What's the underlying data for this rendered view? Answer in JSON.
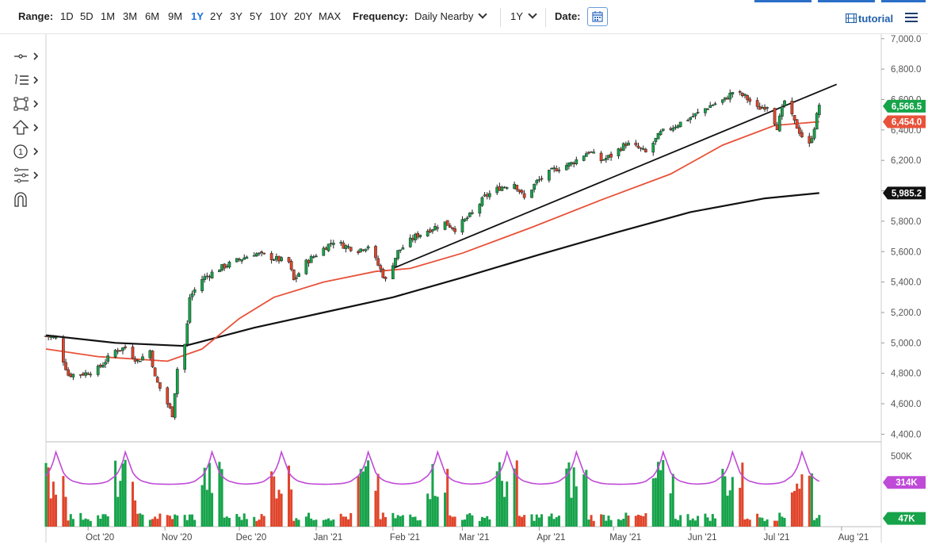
{
  "toolbar": {
    "range_label": "Range:",
    "ranges": [
      "1D",
      "5D",
      "1M",
      "3M",
      "6M",
      "9M",
      "1Y",
      "2Y",
      "3Y",
      "5Y",
      "10Y",
      "20Y",
      "MAX"
    ],
    "active_range": "1Y",
    "frequency_label": "Frequency:",
    "frequency_value": "Daily Nearby",
    "period_value": "1Y",
    "date_label": "Date:",
    "tutorial_label": "tutorial"
  },
  "tools": [
    "crosshair-tool",
    "drawing-list-tool",
    "rectangle-tool",
    "arrow-tool",
    "number-marker-tool",
    "fibonacci-tool",
    "magnet-tool"
  ],
  "colors": {
    "accent": "#1e6fd9",
    "up": "#16a34a",
    "down": "#e0452b",
    "ma50": "#e8523a",
    "ma200": "#111111",
    "volume_avg": "#c04ad8"
  },
  "chart_data": {
    "type": "candlestick",
    "x_ticks": [
      "Oct '20",
      "Nov '20",
      "Dec '20",
      "Jan '21",
      "Feb '21",
      "Mar '21",
      "Apr '21",
      "May '21",
      "Jun '21",
      "Jul '21",
      "Aug '21"
    ],
    "y_ticks": [
      "7,000.0",
      "6,800.0",
      "6,600.0",
      "6,400.0",
      "6,200.0",
      "6,000.0",
      "5,800.0",
      "5,600.0",
      "5,400.0",
      "5,200.0",
      "5,000.0",
      "4,800.0",
      "4,600.0",
      "4,400.0"
    ],
    "ylim": [
      4350,
      7030
    ],
    "price_path": [
      [
        "2020-09-14",
        5045
      ],
      [
        "2020-09-18",
        5030
      ],
      [
        "2020-09-23",
        4790
      ],
      [
        "2020-09-30",
        4800
      ],
      [
        "2020-10-05",
        4830
      ],
      [
        "2020-10-12",
        4950
      ],
      [
        "2020-10-16",
        4970
      ],
      [
        "2020-10-21",
        4880
      ],
      [
        "2020-10-26",
        4950
      ],
      [
        "2020-10-28",
        4770
      ],
      [
        "2020-11-02",
        4600
      ],
      [
        "2020-11-04",
        4530
      ],
      [
        "2020-11-06",
        4830
      ],
      [
        "2020-11-09",
        4990
      ],
      [
        "2020-11-10",
        5120
      ],
      [
        "2020-11-11",
        5300
      ],
      [
        "2020-11-16",
        5420
      ],
      [
        "2020-11-23",
        5490
      ],
      [
        "2020-11-30",
        5540
      ],
      [
        "2020-12-07",
        5590
      ],
      [
        "2020-12-14",
        5560
      ],
      [
        "2020-12-21",
        5530
      ],
      [
        "2020-12-23",
        5410
      ],
      [
        "2020-12-28",
        5530
      ],
      [
        "2021-01-04",
        5620
      ],
      [
        "2021-01-08",
        5670
      ],
      [
        "2021-01-12",
        5640
      ],
      [
        "2021-01-18",
        5610
      ],
      [
        "2021-01-22",
        5640
      ],
      [
        "2021-01-27",
        5480
      ],
      [
        "2021-01-29",
        5410
      ],
      [
        "2021-02-03",
        5600
      ],
      [
        "2021-02-10",
        5700
      ],
      [
        "2021-02-15",
        5740
      ],
      [
        "2021-02-22",
        5790
      ],
      [
        "2021-02-26",
        5750
      ],
      [
        "2021-03-05",
        5850
      ],
      [
        "2021-03-10",
        5960
      ],
      [
        "2021-03-16",
        6020
      ],
      [
        "2021-03-22",
        6050
      ],
      [
        "2021-03-26",
        5950
      ],
      [
        "2021-03-31",
        6060
      ],
      [
        "2021-04-07",
        6140
      ],
      [
        "2021-04-14",
        6180
      ],
      [
        "2021-04-21",
        6260
      ],
      [
        "2021-04-26",
        6200
      ],
      [
        "2021-04-30",
        6230
      ],
      [
        "2021-05-06",
        6310
      ],
      [
        "2021-05-11",
        6280
      ],
      [
        "2021-05-14",
        6250
      ],
      [
        "2021-05-20",
        6380
      ],
      [
        "2021-05-26",
        6430
      ],
      [
        "2021-06-02",
        6490
      ],
      [
        "2021-06-09",
        6560
      ],
      [
        "2021-06-15",
        6600
      ],
      [
        "2021-06-18",
        6650
      ],
      [
        "2021-06-23",
        6620
      ],
      [
        "2021-06-28",
        6540
      ],
      [
        "2021-07-02",
        6560
      ],
      [
        "2021-07-06",
        6420
      ],
      [
        "2021-07-09",
        6590
      ],
      [
        "2021-07-13",
        6450
      ],
      [
        "2021-07-16",
        6360
      ],
      [
        "2021-07-19",
        6300
      ],
      [
        "2021-07-21",
        6420
      ],
      [
        "2021-07-23",
        6566.5
      ]
    ],
    "ma50_path": [
      [
        "2020-09-14",
        4960
      ],
      [
        "2020-10-05",
        4910
      ],
      [
        "2020-11-02",
        4880
      ],
      [
        "2020-11-16",
        4960
      ],
      [
        "2020-12-01",
        5160
      ],
      [
        "2020-12-15",
        5300
      ],
      [
        "2021-01-04",
        5400
      ],
      [
        "2021-01-25",
        5470
      ],
      [
        "2021-02-08",
        5490
      ],
      [
        "2021-03-01",
        5590
      ],
      [
        "2021-03-29",
        5760
      ],
      [
        "2021-04-26",
        5940
      ],
      [
        "2021-05-24",
        6110
      ],
      [
        "2021-06-14",
        6300
      ],
      [
        "2021-07-05",
        6430
      ],
      [
        "2021-07-23",
        6454
      ]
    ],
    "ma200_path": [
      [
        "2020-09-14",
        5050
      ],
      [
        "2020-10-12",
        5000
      ],
      [
        "2020-11-09",
        4980
      ],
      [
        "2020-12-07",
        5100
      ],
      [
        "2021-01-04",
        5200
      ],
      [
        "2021-02-01",
        5300
      ],
      [
        "2021-03-01",
        5430
      ],
      [
        "2021-04-01",
        5580
      ],
      [
        "2021-05-03",
        5730
      ],
      [
        "2021-06-01",
        5860
      ],
      [
        "2021-07-01",
        5950
      ],
      [
        "2021-07-23",
        5985.2
      ]
    ],
    "trendline": [
      [
        "2021-02-01",
        5490
      ],
      [
        "2021-07-30",
        6700
      ]
    ],
    "price_labels": [
      {
        "text": "6,566.5",
        "value": 6566.5,
        "color": "#16a34a"
      },
      {
        "text": "6,454.0",
        "value": 6454.0,
        "color": "#e8523a"
      },
      {
        "text": "5,985.2",
        "value": 5985.2,
        "color": "#111111"
      }
    ],
    "volume": {
      "y_tick": "500K",
      "avg_label": "314K",
      "last_label": "47K",
      "avg_color": "#c04ad8",
      "last_color": "#16a34a",
      "max": 580000,
      "spike_dates": [
        "2020-09-18",
        "2020-10-16",
        "2020-11-20",
        "2020-12-18",
        "2021-01-22",
        "2021-02-19",
        "2021-03-19",
        "2021-04-16",
        "2021-05-21",
        "2021-06-18",
        "2021-07-16"
      ]
    }
  }
}
